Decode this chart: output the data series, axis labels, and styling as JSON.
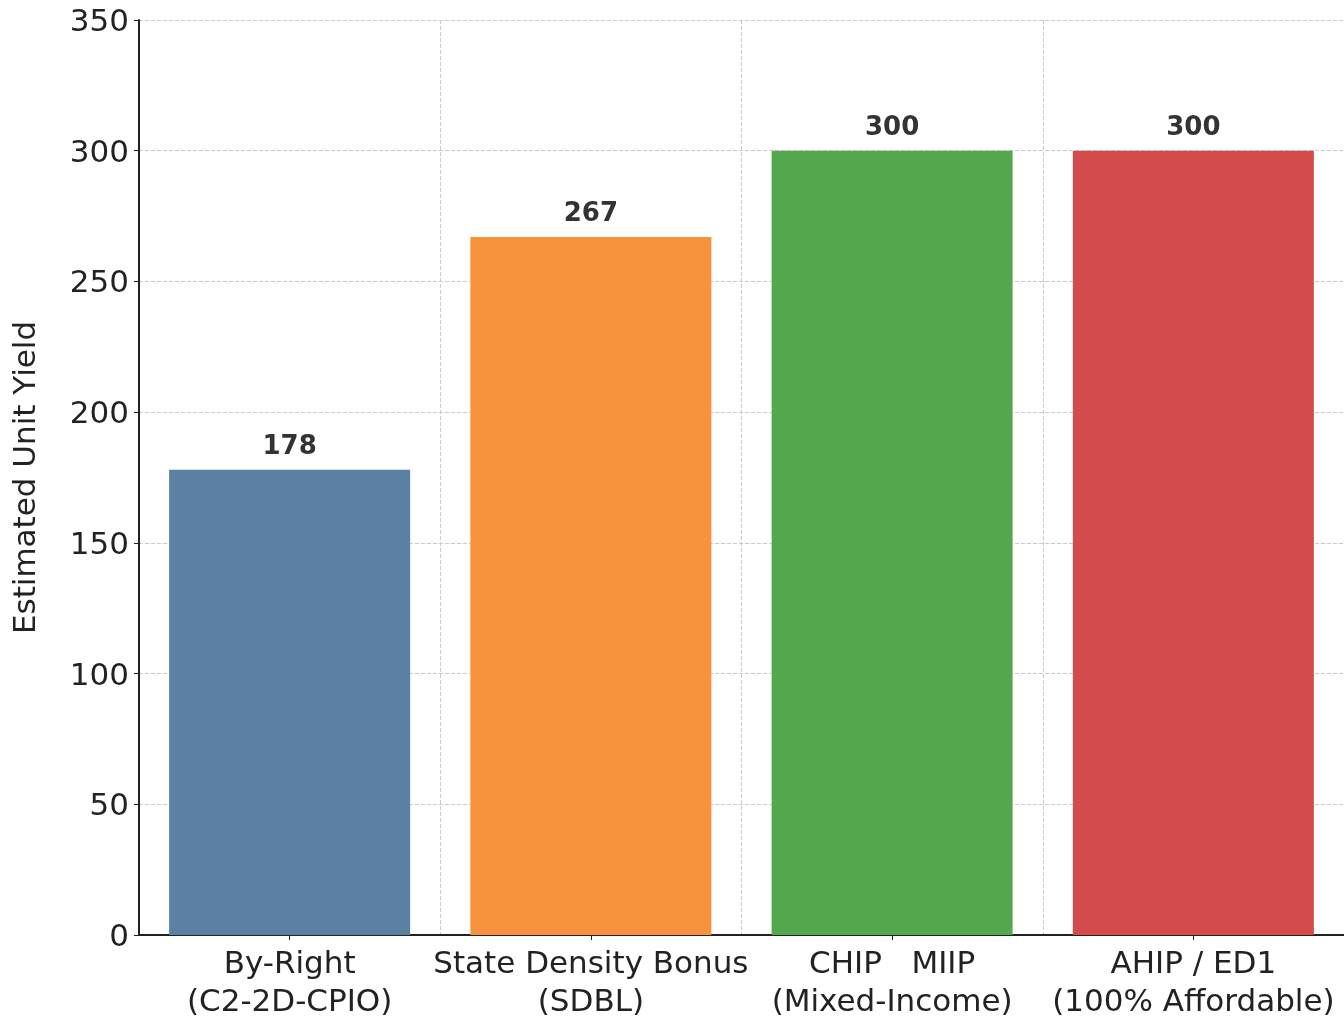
{
  "chart_data": {
    "type": "bar",
    "ylabel": "Estimated Unit Yield",
    "categories": [
      "By-Right\n(C2-2D-CPIO)",
      "State Density Bonus\n(SDBL)",
      "CHIP   MIIP\n(Mixed-Income)",
      "AHIP / ED1\n(100% Affordable)"
    ],
    "values": [
      178,
      267,
      300,
      300
    ],
    "colors": [
      "#5b80a3",
      "#f7923d",
      "#53a84d",
      "#d34b4b"
    ],
    "ylim": [
      0,
      350
    ],
    "yticks": [
      0,
      50,
      100,
      150,
      200,
      250,
      300,
      350
    ],
    "grid": true,
    "data_labels": true
  }
}
